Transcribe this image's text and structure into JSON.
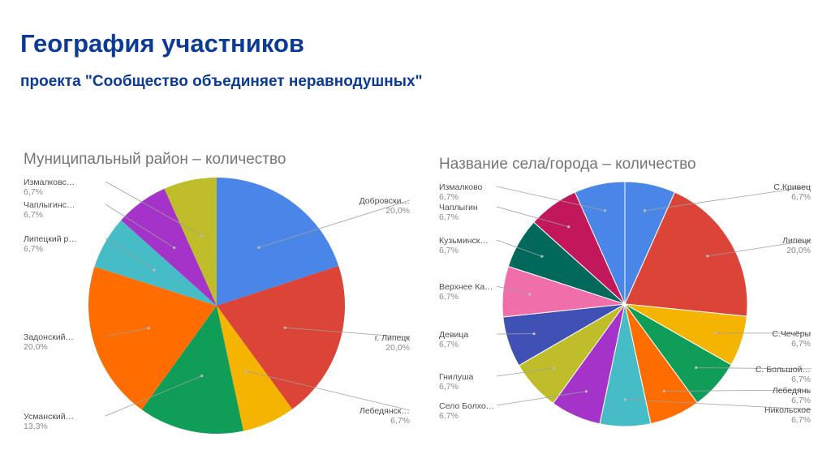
{
  "header": {
    "title": "География участников",
    "subtitle": "проекта \"Сообщество объединяет неравнодушных\""
  },
  "chart_data": [
    {
      "type": "pie",
      "title": "Муниципальный район – количество",
      "slices": [
        {
          "label": "Добровски…",
          "value": 20.0,
          "pct_label": "20,0%",
          "color": "#4a86e8"
        },
        {
          "label": "г. Липецк",
          "value": 20.0,
          "pct_label": "20,0%",
          "color": "#dc4437"
        },
        {
          "label": "Лебедянск…",
          "value": 6.7,
          "pct_label": "6,7%",
          "color": "#f4b400"
        },
        {
          "label": "Усманский…",
          "value": 13.3,
          "pct_label": "13,3%",
          "color": "#0f9d58"
        },
        {
          "label": "Задонский…",
          "value": 20.0,
          "pct_label": "20,0%",
          "color": "#ff6d01"
        },
        {
          "label": "Липецкий р…",
          "value": 6.7,
          "pct_label": "6,7%",
          "color": "#46bdc6"
        },
        {
          "label": "Чаплыгинс…",
          "value": 6.7,
          "pct_label": "6,7%",
          "color": "#a633c9"
        },
        {
          "label": "Измалковс…",
          "value": 6.7,
          "pct_label": "6,7%",
          "color": "#bfbd2a"
        }
      ]
    },
    {
      "type": "pie",
      "title": "Название села/города – количество",
      "slices": [
        {
          "label": "С.Кривец",
          "value": 6.7,
          "pct_label": "6,7%",
          "color": "#4a86e8"
        },
        {
          "label": "Липецк",
          "value": 20.0,
          "pct_label": "20,0%",
          "color": "#dc4437"
        },
        {
          "label": "С.Чечёры",
          "value": 6.7,
          "pct_label": "6,7%",
          "color": "#f4b400"
        },
        {
          "label": "С. Большой…",
          "value": 6.7,
          "pct_label": "6,7%",
          "color": "#0f9d58"
        },
        {
          "label": "Лебедянь",
          "value": 6.7,
          "pct_label": "6,7%",
          "color": "#ff6d01"
        },
        {
          "label": "Никольское",
          "value": 6.7,
          "pct_label": "6,7%",
          "color": "#46bdc6"
        },
        {
          "label": "Село Болхо…",
          "value": 6.7,
          "pct_label": "6,7%",
          "color": "#a633c9"
        },
        {
          "label": "Гнилуша",
          "value": 6.7,
          "pct_label": "6,7%",
          "color": "#bfbd2a"
        },
        {
          "label": "Девица",
          "value": 6.7,
          "pct_label": "6,7%",
          "color": "#3f51b5"
        },
        {
          "label": "Верхнее Ка…",
          "value": 6.7,
          "pct_label": "6,7%",
          "color": "#f06ea9"
        },
        {
          "label": "Кузьминск…",
          "value": 6.7,
          "pct_label": "6,7%",
          "color": "#00695c"
        },
        {
          "label": "Чаплыгин",
          "value": 6.7,
          "pct_label": "6,7%",
          "color": "#c2185b"
        },
        {
          "label": "Измалково",
          "value": 6.7,
          "pct_label": "6,7%",
          "color": "#4a86e8"
        }
      ]
    }
  ]
}
